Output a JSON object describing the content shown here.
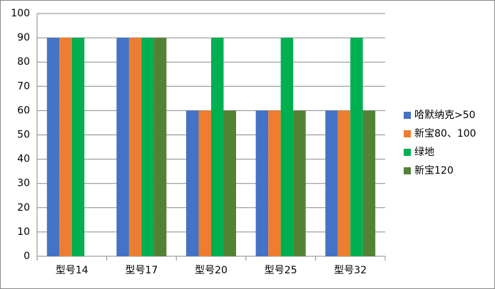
{
  "chart_data": {
    "type": "bar",
    "categories": [
      "型号14",
      "型号17",
      "型号20",
      "型号25",
      "型号32"
    ],
    "series": [
      {
        "name": "哈默纳克>50",
        "color": "#4472c4",
        "values": [
          90,
          90,
          60,
          60,
          60
        ]
      },
      {
        "name": "新宝80、100",
        "color": "#ed7d31",
        "values": [
          90,
          90,
          60,
          60,
          60
        ]
      },
      {
        "name": "绿地",
        "color": "#00b050",
        "values": [
          90,
          90,
          90,
          90,
          90
        ]
      },
      {
        "name": "新宝120",
        "color": "#548235",
        "values": [
          null,
          90,
          60,
          60,
          60
        ]
      }
    ],
    "ylim": [
      0,
      100
    ],
    "yticks": [
      0,
      10,
      20,
      30,
      40,
      50,
      60,
      70,
      80,
      90,
      100
    ],
    "grid": true,
    "legend": "right"
  }
}
